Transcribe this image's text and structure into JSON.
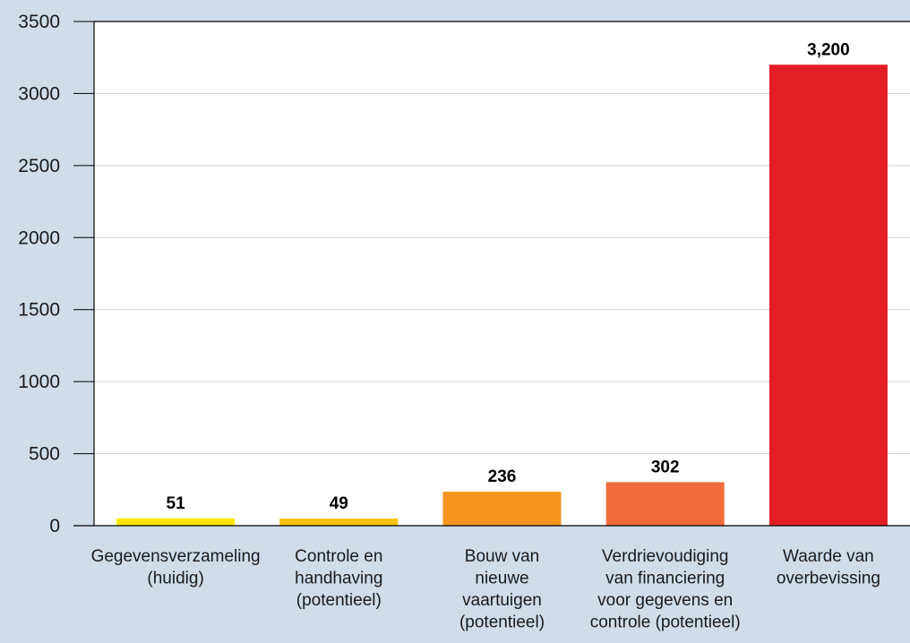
{
  "chart_data": {
    "type": "bar",
    "title": "",
    "xlabel": "",
    "ylabel": "",
    "ylim": [
      0,
      3500
    ],
    "yticks": [
      0,
      500,
      1000,
      1500,
      2000,
      2500,
      3000,
      3500
    ],
    "grid": true,
    "categories": [
      [
        "Gegevensverzameling",
        "(huidig)"
      ],
      [
        "Controle en",
        "handhaving",
        "(potentieel)"
      ],
      [
        "Bouw van",
        "nieuwe",
        "vaartuigen",
        "(potentieel)"
      ],
      [
        "Verdrievoudiging",
        "van financiering",
        "voor gegevens en",
        "controle (potentieel)"
      ],
      [
        "Waarde van",
        "overbevissing"
      ]
    ],
    "values": [
      51,
      49,
      236,
      302,
      3200
    ],
    "value_labels": [
      "51",
      "49",
      "236",
      "302",
      "3,200"
    ],
    "colors": [
      "#ffe600",
      "#f7c20a",
      "#f7941d",
      "#f26a3a",
      "#e41e26"
    ]
  }
}
